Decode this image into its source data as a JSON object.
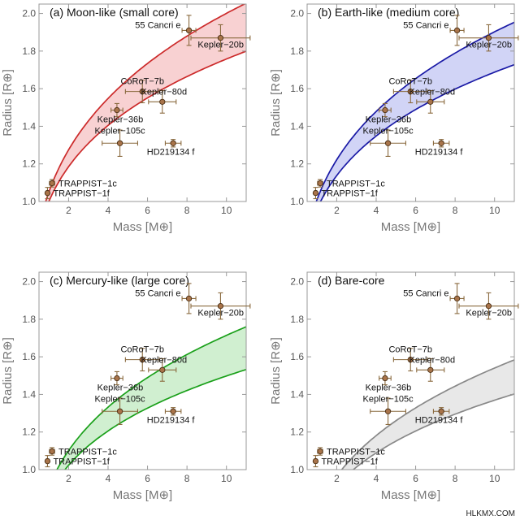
{
  "watermark": "HLKMX.COM",
  "chart_data": [
    {
      "type": "scatter",
      "title": "(a) Moon-like (small core)",
      "xlabel": "Mass [M⊕]",
      "ylabel": "Radius [R⊕]",
      "xlim": [
        0.5,
        11
      ],
      "ylim": [
        1.0,
        2.05
      ],
      "xticks": [
        2,
        4,
        6,
        8,
        10
      ],
      "yticks": [
        1.0,
        1.2,
        1.4,
        1.6,
        1.8,
        2.0
      ],
      "band": {
        "color": "#cc2a2a",
        "fill": "#f7c9ca",
        "lower": {
          "c": 1.0,
          "p": 0.245
        },
        "upper": {
          "c": 1.05,
          "p": 0.28
        }
      },
      "points": [
        {
          "name": "55 Cancri e",
          "x": 8.1,
          "y": 1.91,
          "xerr": 0.35,
          "yerr": 0.08
        },
        {
          "name": "Kepler−20b",
          "x": 9.7,
          "y": 1.87,
          "xerr": 1.5,
          "yerr": 0.07
        },
        {
          "name": "CoRoT−7b",
          "x": 5.74,
          "y": 1.585,
          "xerr": 0.86,
          "yerr": 0.06
        },
        {
          "name": "Kepler−80d",
          "x": 6.75,
          "y": 1.53,
          "xerr": 0.7,
          "yerr": 0.06
        },
        {
          "name": "Kepler−36b",
          "x": 4.45,
          "y": 1.486,
          "xerr": 0.3,
          "yerr": 0.035
        },
        {
          "name": "Kepler−105c",
          "x": 4.6,
          "y": 1.31,
          "xerr": 0.9,
          "yerr": 0.07
        },
        {
          "name": "HD219134 f",
          "x": 7.3,
          "y": 1.31,
          "xerr": 0.4,
          "yerr": 0.02
        },
        {
          "name": "TRAPPIST−1c",
          "x": 1.16,
          "y": 1.097,
          "xerr": 0.13,
          "yerr": 0.02
        },
        {
          "name": "TRAPPIST−1f",
          "x": 0.93,
          "y": 1.045,
          "xerr": 0.08,
          "yerr": 0.03
        }
      ]
    },
    {
      "type": "scatter",
      "title": "(b) Earth-like (medium core)",
      "xlabel": "Mass [M⊕]",
      "ylabel": "Radius [R⊕]",
      "xlim": [
        0.5,
        11
      ],
      "ylim": [
        1.0,
        2.05
      ],
      "xticks": [
        2,
        4,
        6,
        8,
        10
      ],
      "yticks": [
        1.0,
        1.2,
        1.4,
        1.6,
        1.8,
        2.0
      ],
      "band": {
        "color": "#1a1aa6",
        "fill": "#c9ccf5",
        "lower": {
          "c": 0.96,
          "p": 0.245
        },
        "upper": {
          "c": 1.01,
          "p": 0.275
        }
      },
      "points": [
        {
          "name": "55 Cancri e",
          "x": 8.1,
          "y": 1.91,
          "xerr": 0.35,
          "yerr": 0.08
        },
        {
          "name": "Kepler−20b",
          "x": 9.7,
          "y": 1.87,
          "xerr": 1.5,
          "yerr": 0.07
        },
        {
          "name": "CoRoT−7b",
          "x": 5.74,
          "y": 1.585,
          "xerr": 0.86,
          "yerr": 0.06
        },
        {
          "name": "Kepler−80d",
          "x": 6.75,
          "y": 1.53,
          "xerr": 0.7,
          "yerr": 0.06
        },
        {
          "name": "Kepler−36b",
          "x": 4.45,
          "y": 1.486,
          "xerr": 0.3,
          "yerr": 0.035
        },
        {
          "name": "Kepler−105c",
          "x": 4.6,
          "y": 1.31,
          "xerr": 0.9,
          "yerr": 0.07
        },
        {
          "name": "HD219134 f",
          "x": 7.3,
          "y": 1.31,
          "xerr": 0.4,
          "yerr": 0.02
        },
        {
          "name": "TRAPPIST−1c",
          "x": 1.16,
          "y": 1.097,
          "xerr": 0.13,
          "yerr": 0.02
        },
        {
          "name": "TRAPPIST−1f",
          "x": 0.93,
          "y": 1.045,
          "xerr": 0.08,
          "yerr": 0.03
        }
      ]
    },
    {
      "type": "scatter",
      "title": "(c) Mercury-like (large core)",
      "xlabel": "Mass [M⊕]",
      "ylabel": "Radius [R⊕]",
      "xlim": [
        0.5,
        11
      ],
      "ylim": [
        1.0,
        2.05
      ],
      "xticks": [
        2,
        4,
        6,
        8,
        10
      ],
      "yticks": [
        1.0,
        1.2,
        1.4,
        1.6,
        1.8,
        2.0
      ],
      "band": {
        "color": "#1aa01a",
        "fill": "#c8ecc8",
        "lower": {
          "c": 0.868,
          "p": 0.237
        },
        "upper": {
          "c": 0.91,
          "p": 0.275
        }
      },
      "points": [
        {
          "name": "55 Cancri e",
          "x": 8.1,
          "y": 1.91,
          "xerr": 0.35,
          "yerr": 0.08
        },
        {
          "name": "Kepler−20b",
          "x": 9.7,
          "y": 1.87,
          "xerr": 1.5,
          "yerr": 0.07
        },
        {
          "name": "CoRoT−7b",
          "x": 5.74,
          "y": 1.585,
          "xerr": 0.86,
          "yerr": 0.06
        },
        {
          "name": "Kepler−80d",
          "x": 6.75,
          "y": 1.53,
          "xerr": 0.7,
          "yerr": 0.06
        },
        {
          "name": "Kepler−36b",
          "x": 4.45,
          "y": 1.486,
          "xerr": 0.3,
          "yerr": 0.035
        },
        {
          "name": "Kepler−105c",
          "x": 4.6,
          "y": 1.31,
          "xerr": 0.9,
          "yerr": 0.07
        },
        {
          "name": "HD219134 f",
          "x": 7.3,
          "y": 1.31,
          "xerr": 0.4,
          "yerr": 0.02
        },
        {
          "name": "TRAPPIST−1c",
          "x": 1.16,
          "y": 1.097,
          "xerr": 0.13,
          "yerr": 0.02
        },
        {
          "name": "TRAPPIST−1f",
          "x": 0.93,
          "y": 1.045,
          "xerr": 0.08,
          "yerr": 0.03
        }
      ]
    },
    {
      "type": "scatter",
      "title": "(d) Bare-core",
      "xlabel": "Mass [M⊕]",
      "ylabel": "Radius [R⊕]",
      "xlim": [
        0.5,
        11
      ],
      "ylim": [
        1.0,
        2.05
      ],
      "xticks": [
        2,
        4,
        6,
        8,
        10
      ],
      "yticks": [
        1.0,
        1.2,
        1.4,
        1.6,
        1.8,
        2.0
      ],
      "band": {
        "color": "#888888",
        "fill": "#e4e4e4",
        "lower": {
          "c": 0.77,
          "p": 0.25
        },
        "upper": {
          "c": 0.79,
          "p": 0.29
        }
      },
      "points": [
        {
          "name": "55 Cancri e",
          "x": 8.1,
          "y": 1.91,
          "xerr": 0.35,
          "yerr": 0.08
        },
        {
          "name": "Kepler−20b",
          "x": 9.7,
          "y": 1.87,
          "xerr": 1.5,
          "yerr": 0.07
        },
        {
          "name": "CoRoT−7b",
          "x": 5.74,
          "y": 1.585,
          "xerr": 0.86,
          "yerr": 0.06
        },
        {
          "name": "Kepler−80d",
          "x": 6.75,
          "y": 1.53,
          "xerr": 0.7,
          "yerr": 0.06
        },
        {
          "name": "Kepler−36b",
          "x": 4.45,
          "y": 1.486,
          "xerr": 0.3,
          "yerr": 0.035
        },
        {
          "name": "Kepler−105c",
          "x": 4.6,
          "y": 1.31,
          "xerr": 0.9,
          "yerr": 0.07
        },
        {
          "name": "HD219134 f",
          "x": 7.3,
          "y": 1.31,
          "xerr": 0.4,
          "yerr": 0.02
        },
        {
          "name": "TRAPPIST−1c",
          "x": 1.16,
          "y": 1.097,
          "xerr": 0.13,
          "yerr": 0.02
        },
        {
          "name": "TRAPPIST−1f",
          "x": 0.93,
          "y": 1.045,
          "xerr": 0.08,
          "yerr": 0.03
        }
      ]
    }
  ]
}
